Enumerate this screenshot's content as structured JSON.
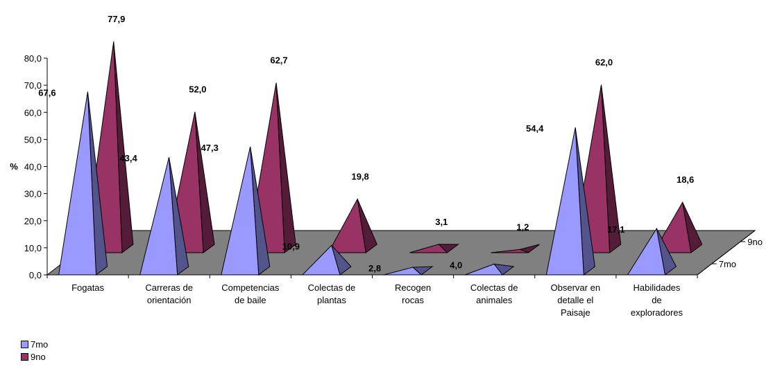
{
  "chart_data": {
    "type": "bar",
    "style": "3d-pyramid",
    "ylabel": "%",
    "ylim": [
      0,
      80
    ],
    "ytick_step": 10,
    "ytick_labels": [
      "0,0",
      "10,0",
      "20,0",
      "30,0",
      "40,0",
      "50,0",
      "60,0",
      "70,0",
      "80,0"
    ],
    "categories": [
      [
        "Fogatas"
      ],
      [
        "Carreras de",
        "orientación"
      ],
      [
        "Competencias",
        "de baile"
      ],
      [
        "Colectas de",
        "plantas"
      ],
      [
        "Recogen",
        "rocas"
      ],
      [
        "Colectas de",
        "animales"
      ],
      [
        "Observar en",
        "detalle el",
        "Paisaje"
      ],
      [
        "Habilidades",
        "de",
        "exploradores"
      ]
    ],
    "series": [
      {
        "name": "7mo",
        "color": "#9999ff",
        "values": [
          67.6,
          43.4,
          47.3,
          10.9,
          2.8,
          4.0,
          54.4,
          17.1
        ],
        "labels": [
          "67,6",
          "43,4",
          "47,3",
          "10,9",
          "2,8",
          "4,0",
          "54,4",
          "17,1"
        ]
      },
      {
        "name": "9no",
        "color": "#993366",
        "values": [
          77.9,
          52.0,
          62.7,
          19.8,
          3.1,
          1.2,
          62.0,
          18.6
        ],
        "labels": [
          "77,9",
          "52,0",
          "62,7",
          "19,8",
          "3,1",
          "1,2",
          "62,0",
          "18,6"
        ]
      }
    ],
    "depth_labels": [
      "7mo",
      "9no"
    ],
    "floor_color": "#808080",
    "grid": false,
    "legend_position": "bottom-left"
  }
}
